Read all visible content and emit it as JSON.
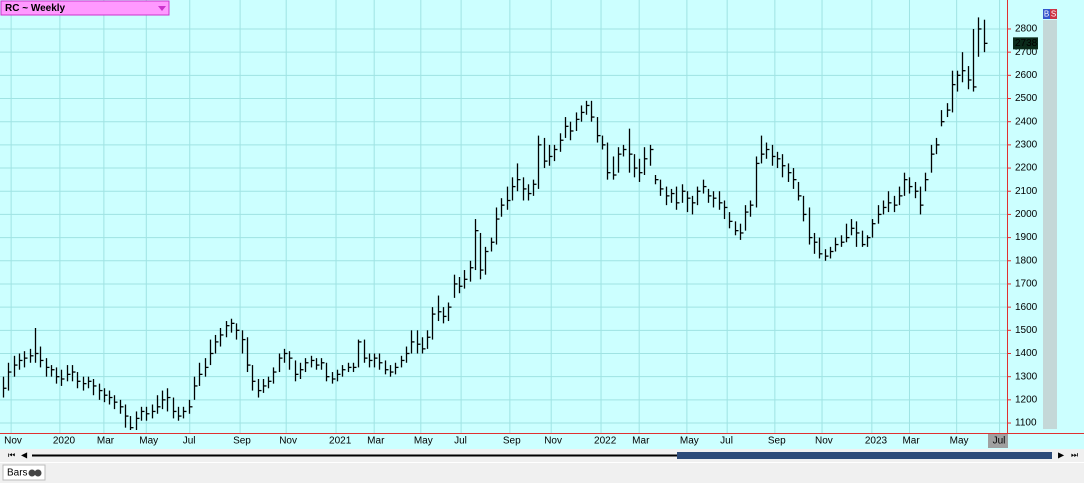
{
  "chart_data": {
    "type": "ohlc",
    "title": "RC ~ Weekly",
    "style": "Bars",
    "buttons": [
      "B",
      "S"
    ],
    "xlim": [
      -0.6,
      189.4
    ],
    "xticks": [
      {
        "value": 1.5,
        "label": "Nov"
      },
      {
        "value": 10.7,
        "label": "2020"
      },
      {
        "value": 19,
        "label": "Mar"
      },
      {
        "value": 27,
        "label": "May"
      },
      {
        "value": 35.2,
        "label": "Jul"
      },
      {
        "value": 44.7,
        "label": "Sep"
      },
      {
        "value": 53.4,
        "label": "Nov"
      },
      {
        "value": 62.8,
        "label": "2021"
      },
      {
        "value": 70,
        "label": "Mar"
      },
      {
        "value": 78.8,
        "label": "May"
      },
      {
        "value": 86.4,
        "label": "Jul"
      },
      {
        "value": 95.6,
        "label": "Sep"
      },
      {
        "value": 103.4,
        "label": "Nov"
      },
      {
        "value": 112.8,
        "label": "2022"
      },
      {
        "value": 120,
        "label": "Mar"
      },
      {
        "value": 129,
        "label": "May"
      },
      {
        "value": 136.6,
        "label": "Jul"
      },
      {
        "value": 145.6,
        "label": "Sep"
      },
      {
        "value": 154.5,
        "label": "Nov"
      },
      {
        "value": 163.9,
        "label": "2023"
      },
      {
        "value": 171,
        "label": "Mar"
      },
      {
        "value": 179.9,
        "label": "May"
      },
      {
        "value": 188,
        "label": "Jul"
      }
    ],
    "ylim": [
      1057,
      2925
    ],
    "yticks": [
      1100,
      1200,
      1300,
      1400,
      1500,
      1600,
      1700,
      1800,
      1900,
      2000,
      2100,
      2200,
      2300,
      2400,
      2500,
      2600,
      2700,
      2800
    ],
    "grid": true,
    "color": "#000000",
    "background": "#ccffff",
    "high": [
      1300,
      1360,
      1390,
      1400,
      1410,
      1420,
      1510,
      1430,
      1380,
      1350,
      1340,
      1330,
      1350,
      1350,
      1320,
      1300,
      1300,
      1290,
      1270,
      1250,
      1240,
      1220,
      1200,
      1180,
      1130,
      1150,
      1170,
      1170,
      1180,
      1220,
      1240,
      1250,
      1210,
      1170,
      1170,
      1200,
      1300,
      1360,
      1380,
      1460,
      1480,
      1510,
      1540,
      1550,
      1530,
      1500,
      1470,
      1350,
      1290,
      1290,
      1300,
      1340,
      1400,
      1420,
      1410,
      1370,
      1360,
      1380,
      1390,
      1380,
      1380,
      1360,
      1320,
      1330,
      1350,
      1360,
      1360,
      1460,
      1460,
      1400,
      1400,
      1400,
      1370,
      1350,
      1360,
      1390,
      1430,
      1500,
      1500,
      1470,
      1500,
      1600,
      1650,
      1600,
      1620,
      1740,
      1730,
      1760,
      1800,
      1980,
      1920,
      1860,
      1900,
      2030,
      2070,
      2120,
      2160,
      2220,
      2160,
      2130,
      2150,
      2340,
      2330,
      2300,
      2300,
      2350,
      2420,
      2400,
      2440,
      2470,
      2490,
      2490,
      2420,
      2340,
      2310,
      2250,
      2290,
      2300,
      2370,
      2260,
      2240,
      2290,
      2300,
      2170,
      2150,
      2120,
      2110,
      2120,
      2130,
      2100,
      2080,
      2120,
      2150,
      2110,
      2100,
      2100,
      2060,
      2010,
      1970,
      1960,
      2040,
      2060,
      2250,
      2340,
      2310,
      2300,
      2270,
      2260,
      2220,
      2200,
      2140,
      2080,
      2030,
      1920,
      1900,
      1850,
      1860,
      1900,
      1910,
      1960,
      1980,
      1970,
      1930,
      1910,
      1980,
      2040,
      2060,
      2100,
      2080,
      2120,
      2180,
      2160,
      2140,
      2120,
      2180,
      2300,
      2330,
      2450,
      2480,
      2620,
      2620,
      2700,
      2640,
      2800,
      2850,
      2840
    ],
    "low": [
      1210,
      1240,
      1300,
      1330,
      1340,
      1360,
      1360,
      1340,
      1300,
      1300,
      1270,
      1260,
      1280,
      1280,
      1250,
      1240,
      1250,
      1220,
      1200,
      1190,
      1180,
      1160,
      1140,
      1080,
      1070,
      1070,
      1110,
      1110,
      1120,
      1140,
      1160,
      1150,
      1120,
      1110,
      1120,
      1140,
      1200,
      1260,
      1300,
      1350,
      1400,
      1430,
      1470,
      1490,
      1460,
      1400,
      1320,
      1240,
      1210,
      1230,
      1250,
      1270,
      1320,
      1360,
      1330,
      1280,
      1290,
      1320,
      1340,
      1330,
      1330,
      1280,
      1270,
      1280,
      1300,
      1320,
      1320,
      1340,
      1360,
      1340,
      1340,
      1330,
      1310,
      1300,
      1310,
      1340,
      1360,
      1400,
      1400,
      1400,
      1420,
      1460,
      1540,
      1530,
      1540,
      1640,
      1660,
      1680,
      1710,
      1760,
      1720,
      1740,
      1840,
      1870,
      1990,
      2020,
      2060,
      2100,
      2060,
      2060,
      2080,
      2110,
      2200,
      2210,
      2230,
      2270,
      2330,
      2320,
      2360,
      2400,
      2430,
      2400,
      2310,
      2280,
      2150,
      2150,
      2180,
      2250,
      2180,
      2160,
      2140,
      2170,
      2210,
      2130,
      2080,
      2040,
      2050,
      2020,
      2050,
      2010,
      2000,
      2040,
      2090,
      2050,
      2030,
      2020,
      1980,
      1940,
      1910,
      1890,
      1930,
      1990,
      2030,
      2220,
      2240,
      2210,
      2200,
      2160,
      2140,
      2110,
      2060,
      1970,
      1870,
      1830,
      1810,
      1800,
      1810,
      1840,
      1860,
      1880,
      1910,
      1860,
      1860,
      1860,
      1900,
      1960,
      2000,
      2010,
      2010,
      2040,
      2080,
      2090,
      2070,
      2000,
      2100,
      2180,
      2260,
      2380,
      2420,
      2440,
      2530,
      2570,
      2540,
      2530,
      2680,
      2700
    ],
    "close": [
      1250,
      1320,
      1350,
      1370,
      1380,
      1390,
      1400,
      1370,
      1340,
      1330,
      1300,
      1290,
      1310,
      1320,
      1280,
      1270,
      1280,
      1260,
      1240,
      1220,
      1210,
      1190,
      1170,
      1130,
      1080,
      1120,
      1150,
      1140,
      1150,
      1170,
      1200,
      1210,
      1150,
      1130,
      1150,
      1170,
      1260,
      1310,
      1340,
      1400,
      1450,
      1480,
      1520,
      1530,
      1500,
      1460,
      1350,
      1280,
      1240,
      1260,
      1280,
      1320,
      1380,
      1400,
      1380,
      1310,
      1330,
      1360,
      1370,
      1350,
      1360,
      1300,
      1290,
      1310,
      1330,
      1340,
      1340,
      1450,
      1380,
      1370,
      1380,
      1360,
      1330,
      1320,
      1340,
      1370,
      1400,
      1450,
      1440,
      1420,
      1470,
      1570,
      1580,
      1560,
      1600,
      1700,
      1690,
      1720,
      1770,
      1930,
      1760,
      1840,
      1880,
      1980,
      2040,
      2060,
      2120,
      2150,
      2110,
      2090,
      2130,
      2300,
      2230,
      2250,
      2280,
      2320,
      2380,
      2360,
      2410,
      2440,
      2470,
      2420,
      2340,
      2300,
      2180,
      2170,
      2260,
      2280,
      2260,
      2200,
      2180,
      2240,
      2280,
      2150,
      2110,
      2080,
      2090,
      2050,
      2100,
      2070,
      2050,
      2100,
      2120,
      2080,
      2070,
      2050,
      2030,
      1970,
      1930,
      1920,
      2010,
      2040,
      2220,
      2260,
      2280,
      2250,
      2240,
      2210,
      2180,
      2150,
      2080,
      2000,
      1900,
      1880,
      1830,
      1820,
      1840,
      1870,
      1880,
      1900,
      1940,
      1920,
      1870,
      1900,
      1960,
      2000,
      2030,
      2050,
      2040,
      2080,
      2150,
      2120,
      2100,
      2040,
      2150,
      2260,
      2300,
      2400,
      2450,
      2560,
      2600,
      2620,
      2580,
      2550,
      2800,
      2738
    ]
  }
}
